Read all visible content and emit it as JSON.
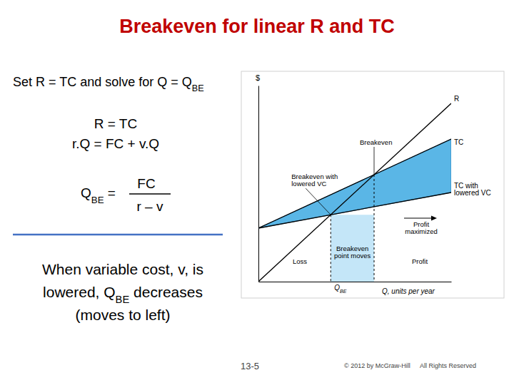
{
  "slide": {
    "title": "Breakeven for linear R and TC",
    "intro": [
      {
        "t": "Set R = TC and solve for Q = Q"
      },
      {
        "t": "BE",
        "sub": true
      }
    ],
    "equations": [
      "R = TC",
      "r.Q = FC + v.Q"
    ],
    "formula": {
      "lhs": [
        {
          "t": "Q"
        },
        {
          "t": "BE",
          "sub": true
        },
        {
          "t": " ="
        }
      ],
      "numerator": "FC",
      "denominator": "r – v"
    },
    "note": [
      [
        {
          "t": "When variable cost, v, is"
        }
      ],
      [
        {
          "t": "lowered, Q"
        },
        {
          "t": "BE",
          "sub": true
        },
        {
          "t": " decreases"
        }
      ],
      [
        {
          "t": "(moves to left)"
        }
      ]
    ],
    "page_number": "13-5",
    "copyright": "© 2012 by McGraw-Hill",
    "rights": "All Rights Reserved"
  },
  "chart_data": {
    "type": "line",
    "y_label": "$",
    "x_label": "Q, units per year",
    "x": [
      0,
      100
    ],
    "xlim": [
      0,
      100
    ],
    "ylim": [
      0,
      110
    ],
    "tick_labels": false,
    "series": [
      {
        "name": "R",
        "color": "#000000",
        "values": [
          0,
          100
        ]
      },
      {
        "name": "TC",
        "color": "#000000",
        "values": [
          30,
          80
        ]
      },
      {
        "name": "TC with lowered VC",
        "color": "#000000",
        "values": [
          30,
          50
        ]
      }
    ],
    "breakeven": [
      {
        "label": "Breakeven",
        "x": 60,
        "y": 60
      },
      {
        "label": "Breakeven with lowered VC",
        "x": 37.5,
        "y": 37.5
      }
    ],
    "annotations": [
      "Breakeven point moves",
      "Profit maximized",
      "Loss",
      "Profit"
    ],
    "qbe_label": [
      {
        "t": "Q"
      },
      {
        "t": "BE",
        "sub": true
      }
    ]
  }
}
